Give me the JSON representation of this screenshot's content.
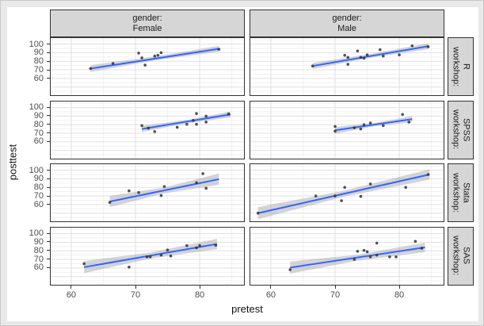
{
  "page": {
    "background": "#e9e9e9",
    "figure_background": "#ffffff"
  },
  "chart_data": {
    "type": "scatter",
    "title": "",
    "xlabel": "pretest",
    "ylabel": "posttest",
    "x_ticks": [
      60,
      70,
      80
    ],
    "y_ticks": [
      100,
      90,
      80,
      70,
      60
    ],
    "x_range": [
      56.8,
      86.9
    ],
    "y_range": [
      40.5,
      107
    ],
    "grid": {
      "x_minor": [
        65,
        75,
        85
      ],
      "y_minor": [
        105,
        95,
        85,
        75,
        65,
        55,
        45
      ],
      "y_major_unlabeled": [
        50
      ]
    },
    "legend_position": "none",
    "facet_columns": [
      {
        "label_line1": "gender:",
        "label_line2": "Female"
      },
      {
        "label_line1": "gender:",
        "label_line2": "Male"
      }
    ],
    "facet_rows": [
      {
        "label_line1": "workshop:",
        "label_line2": "R"
      },
      {
        "label_line1": "workshop:",
        "label_line2": "SPSS"
      },
      {
        "label_line1": "workshop:",
        "label_line2": "Stata"
      },
      {
        "label_line1": "workshop:",
        "label_line2": "SAS"
      }
    ],
    "colors": {
      "smooth_line": "#3366FF",
      "ci_band": "rgba(150,150,150,0.40)",
      "point": "#333333",
      "strip_bg": "#d6d6d6",
      "panel_border": "#333333",
      "grid_major": "#e0e0e0",
      "grid_minor": "#f1f1f1",
      "tick_text": "#4d4d4d",
      "axis_title": "#111111"
    },
    "panels": [
      {
        "row": 0,
        "col": 0,
        "workshop": "R",
        "gender": "Female",
        "points": [
          [
            63,
            71.5
          ],
          [
            66.5,
            77.5
          ],
          [
            70.5,
            89.5
          ],
          [
            71,
            84
          ],
          [
            71.5,
            75.5
          ],
          [
            73,
            86
          ],
          [
            73.5,
            87
          ],
          [
            74,
            90
          ],
          [
            83,
            94
          ]
        ],
        "smooth_line": [
          63,
          71.5,
          83,
          94.5
        ],
        "ci_band": [
          [
            63,
            75.5,
            67.5
          ],
          [
            73,
            85.5,
            81
          ],
          [
            83,
            98,
            91
          ]
        ]
      },
      {
        "row": 0,
        "col": 1,
        "workshop": "R",
        "gender": "Male",
        "points": [
          [
            66.5,
            74.5
          ],
          [
            71.5,
            87
          ],
          [
            72,
            84.5
          ],
          [
            72,
            76.5
          ],
          [
            73.5,
            92
          ],
          [
            74,
            84.5
          ],
          [
            74.5,
            83.5
          ],
          [
            75,
            87.5
          ],
          [
            77,
            93.5
          ],
          [
            77.5,
            86
          ],
          [
            80,
            87.5
          ],
          [
            82,
            98
          ],
          [
            84.5,
            97
          ]
        ],
        "smooth_line": [
          66.5,
          74.5,
          84.5,
          97.5
        ],
        "ci_band": [
          [
            66.5,
            78,
            71
          ],
          [
            75.5,
            88.5,
            84
          ],
          [
            84.5,
            101,
            94
          ]
        ]
      },
      {
        "row": 1,
        "col": 0,
        "workshop": "SPSS",
        "gender": "Female",
        "points": [
          [
            71,
            79
          ],
          [
            72,
            76
          ],
          [
            73,
            72
          ],
          [
            76.5,
            77
          ],
          [
            78,
            80.5
          ],
          [
            79,
            85
          ],
          [
            79.5,
            93
          ],
          [
            79.5,
            80.5
          ],
          [
            81,
            83
          ],
          [
            81,
            90
          ],
          [
            84.5,
            92.5
          ]
        ],
        "smooth_line": [
          71,
          75,
          84.8,
          92
        ],
        "ci_band": [
          [
            71,
            79,
            71.5
          ],
          [
            78,
            85.5,
            81.5
          ],
          [
            84.8,
            95.5,
            88.5
          ]
        ]
      },
      {
        "row": 1,
        "col": 1,
        "workshop": "SPSS",
        "gender": "Male",
        "points": [
          [
            70,
            78
          ],
          [
            70,
            72.5
          ],
          [
            73,
            76.5
          ],
          [
            74,
            75
          ],
          [
            74.5,
            80
          ],
          [
            75.5,
            82
          ],
          [
            77.5,
            79
          ],
          [
            80.5,
            92
          ],
          [
            81.5,
            83
          ]
        ],
        "smooth_line": [
          70,
          73.5,
          82,
          86.5
        ],
        "ci_band": [
          [
            70,
            77.5,
            69.5
          ],
          [
            76,
            82,
            78
          ],
          [
            82,
            90,
            83
          ]
        ]
      },
      {
        "row": 2,
        "col": 0,
        "workshop": "Stata",
        "gender": "Female",
        "points": [
          [
            66,
            62.5
          ],
          [
            69,
            76
          ],
          [
            70.5,
            74
          ],
          [
            74,
            70.5
          ],
          [
            74.5,
            81
          ],
          [
            79.5,
            85.5
          ],
          [
            80.5,
            96
          ],
          [
            81,
            79
          ]
        ],
        "smooth_line": [
          66,
          63.5,
          83,
          89.5
        ],
        "ci_band": [
          [
            66,
            70,
            57
          ],
          [
            74.5,
            80,
            73
          ],
          [
            83,
            96,
            83
          ]
        ]
      },
      {
        "row": 2,
        "col": 1,
        "workshop": "Stata",
        "gender": "Male",
        "points": [
          [
            58,
            50
          ],
          [
            67,
            70
          ],
          [
            70,
            70
          ],
          [
            71,
            64.5
          ],
          [
            71.5,
            80
          ],
          [
            74,
            69.5
          ],
          [
            75.5,
            84
          ],
          [
            81,
            80
          ],
          [
            84.5,
            95
          ]
        ],
        "smooth_line": [
          58,
          50,
          84.7,
          95
        ],
        "ci_band": [
          [
            58,
            57,
            43
          ],
          [
            71.3,
            76,
            69
          ],
          [
            84.7,
            101,
            89
          ]
        ]
      },
      {
        "row": 3,
        "col": 0,
        "workshop": "SAS",
        "gender": "Female",
        "points": [
          [
            62,
            65
          ],
          [
            69,
            61
          ],
          [
            71.8,
            73
          ],
          [
            72.3,
            73
          ],
          [
            74,
            75
          ],
          [
            75,
            81
          ],
          [
            75.5,
            74
          ],
          [
            78,
            86
          ],
          [
            79.5,
            83.5
          ],
          [
            80,
            86
          ],
          [
            82.5,
            86.5
          ]
        ],
        "smooth_line": [
          62,
          61,
          82.7,
          88
        ],
        "ci_band": [
          [
            62,
            68,
            54
          ],
          [
            72.3,
            78,
            71
          ],
          [
            82.7,
            94,
            82
          ]
        ]
      },
      {
        "row": 3,
        "col": 1,
        "workshop": "SAS",
        "gender": "Male",
        "points": [
          [
            63,
            58
          ],
          [
            73,
            70
          ],
          [
            73.5,
            79.5
          ],
          [
            74.5,
            80.5
          ],
          [
            75,
            79
          ],
          [
            75.5,
            73
          ],
          [
            76.5,
            89
          ],
          [
            76.5,
            75
          ],
          [
            78.5,
            73
          ],
          [
            79.5,
            73
          ],
          [
            82.5,
            91
          ],
          [
            83.5,
            83
          ]
        ],
        "smooth_line": [
          63,
          60.5,
          84,
          84
        ],
        "ci_band": [
          [
            63,
            67.5,
            53.5
          ],
          [
            73.5,
            75.5,
            68.5
          ],
          [
            84,
            89.5,
            78.5
          ]
        ]
      }
    ]
  }
}
